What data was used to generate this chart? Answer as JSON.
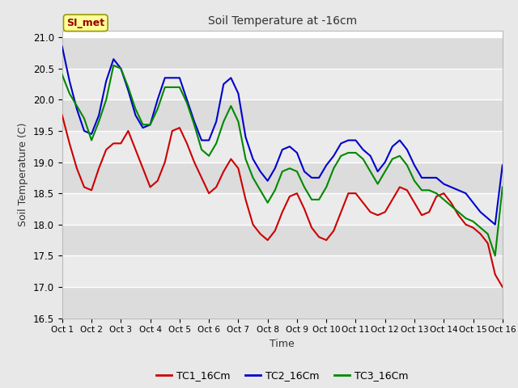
{
  "title": "Soil Temperature at -16cm",
  "xlabel": "Time",
  "ylabel": "Soil Temperature (C)",
  "ylim": [
    16.5,
    21.1
  ],
  "xlim": [
    0,
    15
  ],
  "xtick_labels": [
    "Oct 1",
    "Oct 2",
    "Oct 3",
    "Oct 4",
    "Oct 5",
    "Oct 6",
    "Oct 7",
    "Oct 8",
    "Oct 9",
    "Oct 10",
    "Oct 11",
    "Oct 12",
    "Oct 13",
    "Oct 14",
    "Oct 15",
    "Oct 16"
  ],
  "ytick_values": [
    16.5,
    17.0,
    17.5,
    18.0,
    18.5,
    19.0,
    19.5,
    20.0,
    20.5,
    21.0
  ],
  "fig_bg_color": "#e8e8e8",
  "plot_bg_color": "#ffffff",
  "band_colors": [
    "#f0f0f0",
    "#e0e0e0"
  ],
  "grid_color": "#ffffff",
  "annotation_text": "SI_met",
  "annotation_bg": "#ffff99",
  "annotation_border": "#999900",
  "annotation_text_color": "#990000",
  "series": {
    "TC1_16Cm": {
      "color": "#cc0000",
      "x": [
        0.0,
        0.25,
        0.5,
        0.75,
        1.0,
        1.25,
        1.5,
        1.75,
        2.0,
        2.25,
        2.5,
        2.75,
        3.0,
        3.25,
        3.5,
        3.75,
        4.0,
        4.25,
        4.5,
        4.75,
        5.0,
        5.25,
        5.5,
        5.75,
        6.0,
        6.25,
        6.5,
        6.75,
        7.0,
        7.25,
        7.5,
        7.75,
        8.0,
        8.25,
        8.5,
        8.75,
        9.0,
        9.25,
        9.5,
        9.75,
        10.0,
        10.25,
        10.5,
        10.75,
        11.0,
        11.25,
        11.5,
        11.75,
        12.0,
        12.25,
        12.5,
        12.75,
        13.0,
        13.25,
        13.5,
        13.75,
        14.0,
        14.25,
        14.5,
        14.75,
        15.0
      ],
      "y": [
        19.75,
        19.3,
        18.9,
        18.6,
        18.55,
        18.9,
        19.2,
        19.3,
        19.3,
        19.5,
        19.2,
        18.9,
        18.6,
        18.7,
        19.0,
        19.5,
        19.55,
        19.3,
        19.0,
        18.75,
        18.5,
        18.6,
        18.85,
        19.05,
        18.9,
        18.4,
        18.0,
        17.85,
        17.75,
        17.9,
        18.2,
        18.45,
        18.5,
        18.25,
        17.95,
        17.8,
        17.75,
        17.9,
        18.2,
        18.5,
        18.5,
        18.35,
        18.2,
        18.15,
        18.2,
        18.4,
        18.6,
        18.55,
        18.35,
        18.15,
        18.2,
        18.45,
        18.5,
        18.35,
        18.15,
        18.0,
        17.95,
        17.85,
        17.7,
        17.2,
        17.0
      ]
    },
    "TC2_16Cm": {
      "color": "#0000cc",
      "x": [
        0.0,
        0.25,
        0.5,
        0.75,
        1.0,
        1.25,
        1.5,
        1.75,
        2.0,
        2.25,
        2.5,
        2.75,
        3.0,
        3.25,
        3.5,
        3.75,
        4.0,
        4.25,
        4.5,
        4.75,
        5.0,
        5.25,
        5.5,
        5.75,
        6.0,
        6.25,
        6.5,
        6.75,
        7.0,
        7.25,
        7.5,
        7.75,
        8.0,
        8.25,
        8.5,
        8.75,
        9.0,
        9.25,
        9.5,
        9.75,
        10.0,
        10.25,
        10.5,
        10.75,
        11.0,
        11.25,
        11.5,
        11.75,
        12.0,
        12.25,
        12.5,
        12.75,
        13.0,
        13.25,
        13.5,
        13.75,
        14.0,
        14.25,
        14.5,
        14.75,
        15.0
      ],
      "y": [
        20.85,
        20.3,
        19.85,
        19.5,
        19.45,
        19.75,
        20.3,
        20.65,
        20.5,
        20.15,
        19.75,
        19.55,
        19.6,
        20.0,
        20.35,
        20.35,
        20.35,
        20.0,
        19.65,
        19.35,
        19.35,
        19.65,
        20.25,
        20.35,
        20.1,
        19.4,
        19.05,
        18.85,
        18.7,
        18.9,
        19.2,
        19.25,
        19.15,
        18.85,
        18.75,
        18.75,
        18.95,
        19.1,
        19.3,
        19.35,
        19.35,
        19.2,
        19.1,
        18.85,
        19.0,
        19.25,
        19.35,
        19.2,
        18.95,
        18.75,
        18.75,
        18.75,
        18.65,
        18.6,
        18.55,
        18.5,
        18.35,
        18.2,
        18.1,
        18.0,
        18.95
      ]
    },
    "TC3_16Cm": {
      "color": "#008800",
      "x": [
        0.0,
        0.25,
        0.5,
        0.75,
        1.0,
        1.25,
        1.5,
        1.75,
        2.0,
        2.25,
        2.5,
        2.75,
        3.0,
        3.25,
        3.5,
        3.75,
        4.0,
        4.25,
        4.5,
        4.75,
        5.0,
        5.25,
        5.5,
        5.75,
        6.0,
        6.25,
        6.5,
        6.75,
        7.0,
        7.25,
        7.5,
        7.75,
        8.0,
        8.25,
        8.5,
        8.75,
        9.0,
        9.25,
        9.5,
        9.75,
        10.0,
        10.25,
        10.5,
        10.75,
        11.0,
        11.25,
        11.5,
        11.75,
        12.0,
        12.25,
        12.5,
        12.75,
        13.0,
        13.25,
        13.5,
        13.75,
        14.0,
        14.25,
        14.5,
        14.75,
        15.0
      ],
      "y": [
        20.4,
        20.1,
        19.9,
        19.7,
        19.35,
        19.65,
        20.0,
        20.55,
        20.5,
        20.2,
        19.85,
        19.6,
        19.6,
        19.85,
        20.2,
        20.2,
        20.2,
        19.95,
        19.6,
        19.2,
        19.1,
        19.3,
        19.65,
        19.9,
        19.65,
        19.05,
        18.75,
        18.55,
        18.35,
        18.55,
        18.85,
        18.9,
        18.85,
        18.6,
        18.4,
        18.4,
        18.6,
        18.9,
        19.1,
        19.15,
        19.15,
        19.05,
        18.85,
        18.65,
        18.85,
        19.05,
        19.1,
        18.95,
        18.7,
        18.55,
        18.55,
        18.5,
        18.4,
        18.3,
        18.2,
        18.1,
        18.05,
        17.95,
        17.85,
        17.5,
        18.6
      ]
    }
  },
  "legend_entries": [
    "TC1_16Cm",
    "TC2_16Cm",
    "TC3_16Cm"
  ],
  "legend_colors": [
    "#cc0000",
    "#0000cc",
    "#008800"
  ],
  "line_width": 1.5
}
